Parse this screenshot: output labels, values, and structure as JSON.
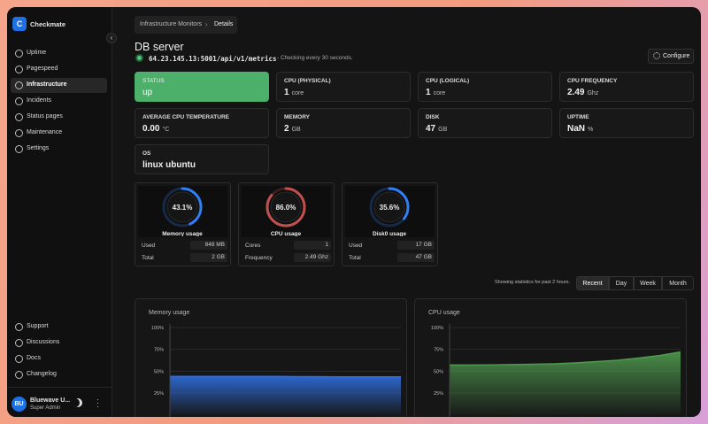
{
  "sidebar": {
    "logo": "C",
    "brand": "Checkmate",
    "nav": [
      "Uptime",
      "Pagespeed",
      "Infrastructure",
      "Incidents",
      "Status pages",
      "Maintenance",
      "Settings"
    ],
    "bottom_nav": [
      "Support",
      "Discussions",
      "Docs",
      "Changelog"
    ],
    "user": {
      "initials": "BU",
      "name": "Bluewave U...",
      "role": "Super Admin"
    }
  },
  "breadcrumb": [
    "Infrastructure Monitors",
    "Details"
  ],
  "header": {
    "title": "DB server",
    "url": "64.23.145.13:5001/api/v1/metrics",
    "check_note": "- Checking every 30 seconds.",
    "configure": "Configure"
  },
  "stats": [
    {
      "label": "STATUS",
      "value": "up"
    },
    {
      "label": "CPU (PHYSICAL)",
      "value": "1",
      "unit": "core"
    },
    {
      "label": "CPU (LOGICAL)",
      "value": "1",
      "unit": "core"
    },
    {
      "label": "CPU FREQUENCY",
      "value": "2.49",
      "unit": "Ghz"
    },
    {
      "label": "AVERAGE CPU TEMPERATURE",
      "value": "0.00",
      "unit": "°C"
    },
    {
      "label": "MEMORY",
      "value": "2",
      "unit": "GB"
    },
    {
      "label": "DISK",
      "value": "47",
      "unit": "GB"
    },
    {
      "label": "UPTIME",
      "value": "NaN",
      "unit": "%"
    },
    {
      "label": "OS",
      "value": "linux ubuntu"
    }
  ],
  "gauges": [
    {
      "value": 43.1,
      "label": "43.1%",
      "title": "Memory usage",
      "color": "#2f7ef6",
      "rows": [
        [
          "Used",
          "848 MB"
        ],
        [
          "Total",
          "2 GB"
        ]
      ]
    },
    {
      "value": 86.0,
      "label": "86.0%",
      "title": "CPU usage",
      "color": "#c0504d",
      "rows": [
        [
          "Cores",
          "1"
        ],
        [
          "Frequency",
          "2.49 Ghz"
        ]
      ]
    },
    {
      "value": 35.6,
      "label": "35.6%",
      "title": "Disk0 usage",
      "color": "#2f7ef6",
      "rows": [
        [
          "Used",
          "17 GB"
        ],
        [
          "Total",
          "47 GB"
        ]
      ]
    }
  ],
  "range_note": "Showing statistics for past 2 hours.",
  "range_tabs": [
    "Recent",
    "Day",
    "Week",
    "Month"
  ],
  "charts": [
    {
      "type": "area",
      "title": "Memory usage",
      "color": "#2f6fe0",
      "ylim": [
        0,
        100
      ],
      "yticks": [
        {
          "value": 100,
          "label": "100%"
        },
        {
          "value": 75,
          "label": "75%"
        },
        {
          "value": 50,
          "label": "50%"
        },
        {
          "value": 25,
          "label": "25%"
        }
      ],
      "values": [
        44,
        44,
        44,
        44,
        44,
        44,
        43.8,
        43.8,
        43.6,
        43.6,
        43.5,
        43.5
      ]
    },
    {
      "type": "area",
      "title": "CPU usage",
      "color": "#4f9a4f",
      "ylim": [
        0,
        100
      ],
      "yticks": [
        {
          "value": 100,
          "label": "100%"
        },
        {
          "value": 75,
          "label": "75%"
        },
        {
          "value": 50,
          "label": "50%"
        },
        {
          "value": 25,
          "label": "25%"
        }
      ],
      "values": [
        57,
        57,
        57.2,
        57.5,
        58,
        58.5,
        59.5,
        61,
        62.5,
        65,
        68,
        72
      ]
    }
  ]
}
